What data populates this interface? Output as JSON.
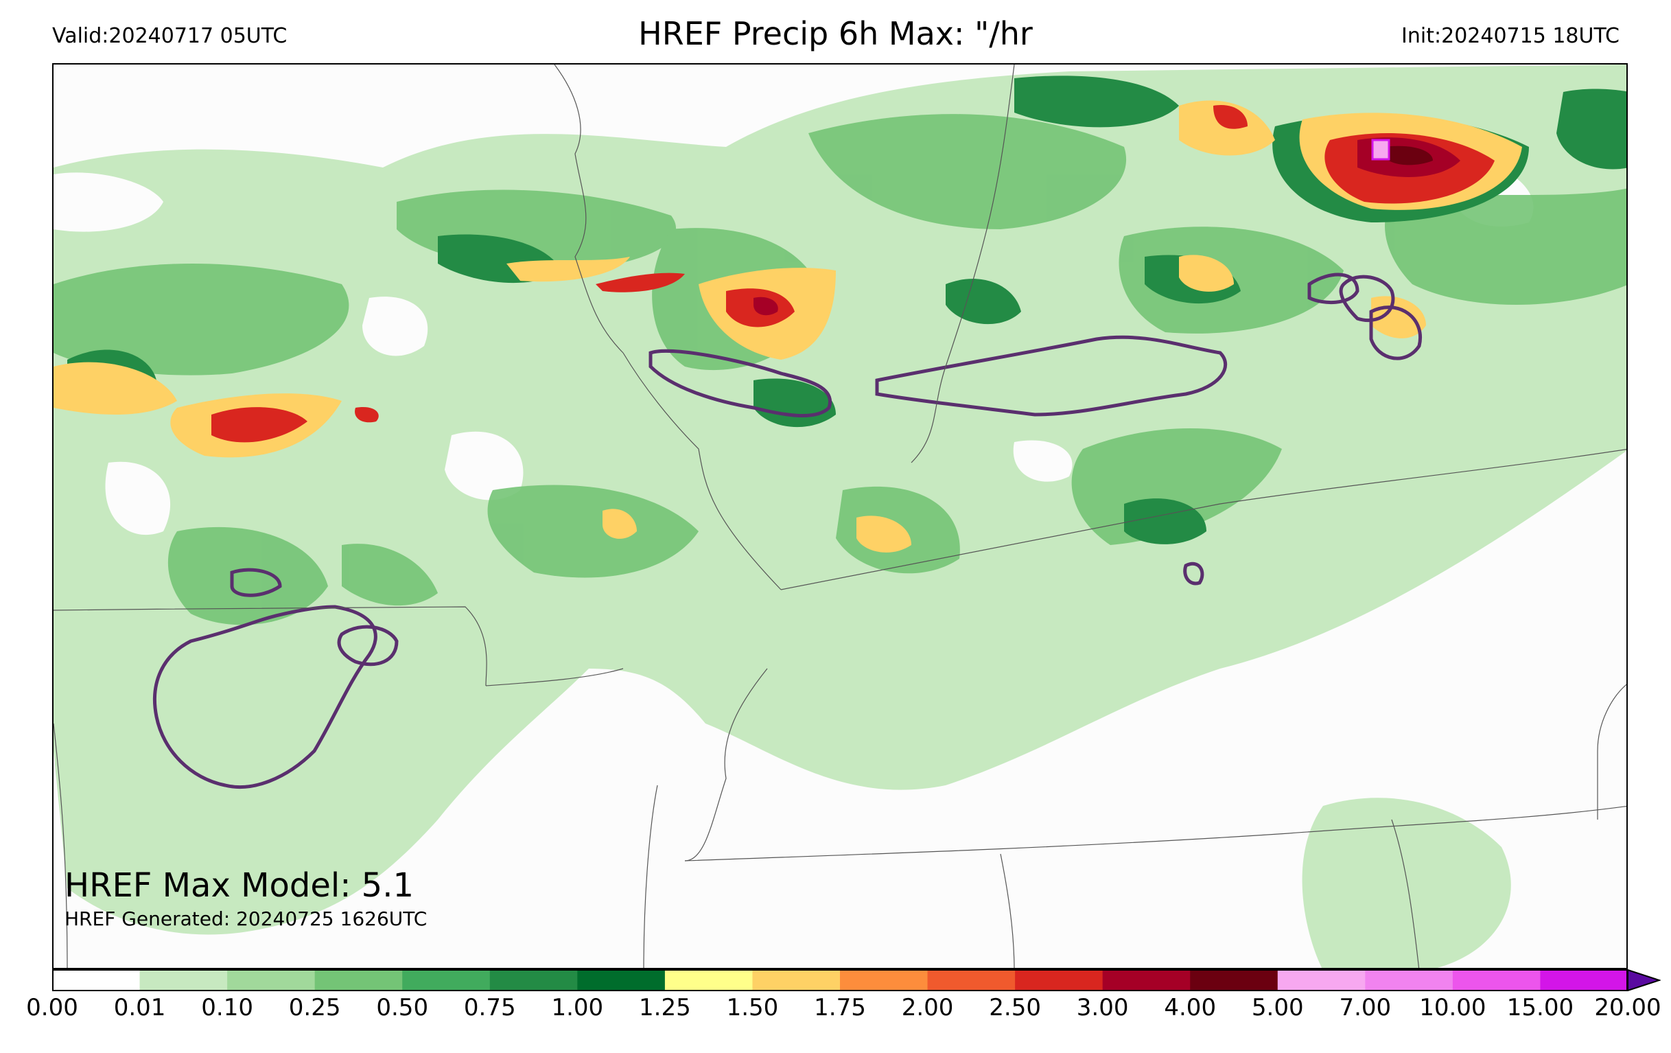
{
  "header": {
    "valid": "Valid:20240717 05UTC",
    "title": "HREF Precip 6h Max: \"/hr",
    "init": "Init:20240715 18UTC"
  },
  "annotations": {
    "max_model": "HREF Max Model: 5.1",
    "generated": "HREF Generated: 20240725 1626UTC"
  },
  "colorbar": {
    "levels": [
      "0.00",
      "0.01",
      "0.10",
      "0.25",
      "0.50",
      "0.75",
      "1.00",
      "1.25",
      "1.50",
      "1.75",
      "2.00",
      "2.50",
      "3.00",
      "4.00",
      "5.00",
      "7.00",
      "10.00",
      "15.00",
      "20.00"
    ],
    "colors": [
      "#ffffff",
      "#c7e9c0",
      "#a1d99b",
      "#74c476",
      "#41ab5d",
      "#238b45",
      "#006d2c",
      "#ffff8a",
      "#fed165",
      "#fd8d3c",
      "#f05a2d",
      "#d9261f",
      "#a50026",
      "#6b0010",
      "#f7a8f0",
      "#f183ef",
      "#ec55ec",
      "#d315e8",
      "#9106d0"
    ],
    "extend_color": "#5a0aa0"
  },
  "legend_colors": {
    "light_green": "#c7e9c0",
    "mid_green": "#74c476",
    "dark_green": "#238b45",
    "yellow": "#fed165",
    "red": "#d9261f",
    "dark_red": "#a50026",
    "pink": "#f7a8f0",
    "contour": "#5a2f6e"
  }
}
